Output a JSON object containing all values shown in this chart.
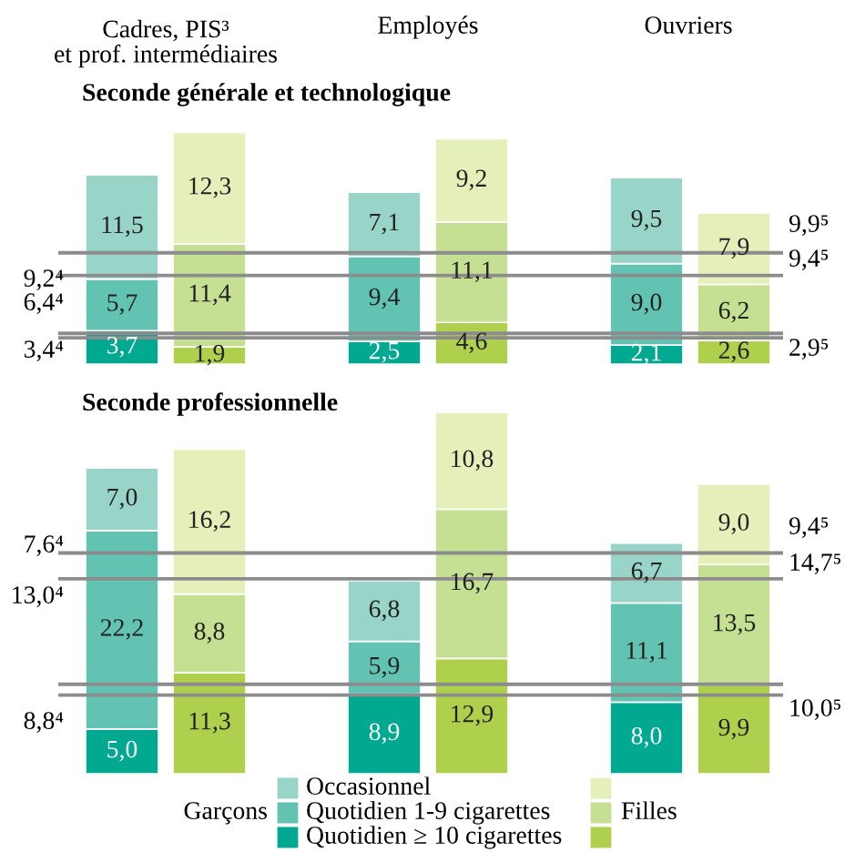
{
  "chart_data": [
    {
      "type": "bar",
      "title": "Seconde générale et technologique",
      "categories": [
        null,
        null,
        null,
        null,
        null,
        null
      ],
      "stacked": true,
      "ylim": [
        0,
        26
      ],
      "tick_labels": false,
      "series": [
        {
          "colors": [
            "#00a98f",
            "#afd04c",
            "#00a98f",
            "#afd04c",
            "#00a98f",
            "#afd04c"
          ],
          "values": [
            3.7,
            1.9,
            2.5,
            4.6,
            2.1,
            2.6
          ],
          "value_labels": [
            "3,7",
            "1,9",
            "2,5",
            "4,6",
            "2,1",
            "2,6"
          ]
        },
        {
          "colors": [
            "#62c3b3",
            "#c5df93",
            "#62c3b3",
            "#c5df93",
            "#62c3b3",
            "#c5df93"
          ],
          "values": [
            5.7,
            11.4,
            9.4,
            11.1,
            9.0,
            6.2
          ],
          "value_labels": [
            "5,7",
            "11,4",
            "9,4",
            "11,1",
            "9,0",
            "6,2"
          ]
        },
        {
          "colors": [
            "#98d5c8",
            "#e5efb9",
            "#98d5c8",
            "#e5efb9",
            "#98d5c8",
            "#e5efb9"
          ],
          "values": [
            11.5,
            12.3,
            7.1,
            9.2,
            9.5,
            7.9
          ],
          "value_labels": [
            "11,5",
            "12,3",
            "7,1",
            "9,2",
            "9,5",
            "7,9"
          ]
        }
      ],
      "ref_lines": [
        {
          "axis": "y",
          "value": 3.4,
          "color": "#8c8c8c"
        },
        {
          "axis": "y",
          "value": 9.8,
          "color": "#8c8c8c"
        },
        {
          "axis": "y",
          "value": 2.9,
          "color": "#8c8c8c"
        },
        {
          "axis": "y",
          "value": 12.3,
          "color": "#8c8c8c"
        }
      ],
      "annotations": [
        "Cadres, PIS³\net prof. intermédiaires",
        "Employés",
        "Ouvriers",
        "9,2⁴",
        "6,4⁴",
        "3,4⁴",
        "9,9⁵",
        "9,4⁵",
        "2,9⁵"
      ]
    },
    {
      "type": "bar",
      "title": "Seconde professionnelle",
      "categories": [
        null,
        null,
        null,
        null,
        null,
        null
      ],
      "stacked": true,
      "ylim": [
        0,
        41
      ],
      "tick_labels": false,
      "legend": "bottom",
      "series": [
        {
          "name": "Quotidien ≥ 10 cigarettes",
          "colors": [
            "#00a98f",
            "#afd04c",
            "#00a98f",
            "#afd04c",
            "#00a98f",
            "#afd04c"
          ],
          "values": [
            5.0,
            11.3,
            8.9,
            12.9,
            8.0,
            9.9
          ],
          "value_labels": [
            "5,0",
            "11,3",
            "8,9",
            "12,9",
            "8,0",
            "9,9"
          ]
        },
        {
          "name": "Quotidien 1-9 cigarettes",
          "colors": [
            "#62c3b3",
            "#c5df93",
            "#62c3b3",
            "#c5df93",
            "#62c3b3",
            "#c5df93"
          ],
          "values": [
            22.2,
            8.8,
            5.9,
            16.7,
            11.1,
            13.5
          ],
          "value_labels": [
            "22,2",
            "8,8",
            "5,9",
            "16,7",
            "11,1",
            "13,5"
          ]
        },
        {
          "name": "Occasionnel",
          "colors": [
            "#98d5c8",
            "#e5efb9",
            "#98d5c8",
            "#e5efb9",
            "#98d5c8",
            "#e5efb9"
          ],
          "values": [
            7.0,
            16.2,
            6.8,
            10.8,
            6.7,
            9.0
          ],
          "value_labels": [
            "7,0",
            "16,2",
            "6,8",
            "10,8",
            "6,7",
            "9,0"
          ]
        }
      ],
      "ref_lines": [
        {
          "axis": "y",
          "value": 8.8,
          "color": "#8c8c8c"
        },
        {
          "axis": "y",
          "value": 21.8,
          "color": "#8c8c8c"
        },
        {
          "axis": "y",
          "value": 10.0,
          "color": "#8c8c8c"
        },
        {
          "axis": "y",
          "value": 24.7,
          "color": "#8c8c8c"
        }
      ],
      "annotations": [
        "7,6⁴",
        "13,0⁴",
        "8,8⁴",
        "9,4⁵",
        "14,7⁵",
        "10,0⁵",
        "Garçons",
        "Filles"
      ]
    }
  ]
}
